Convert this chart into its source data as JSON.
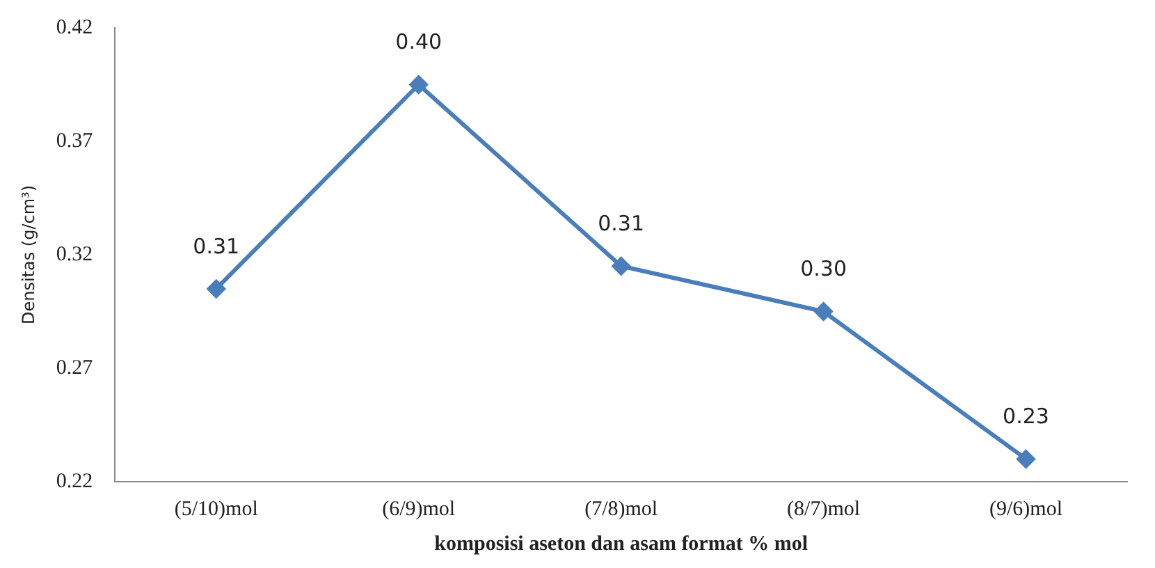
{
  "chart_data": {
    "type": "line",
    "xlabel": "komposisi aseton dan asam format % mol",
    "ylabel": "Densitas (g/cm³)",
    "categories": [
      "(5/10)mol",
      "(6/9)mol",
      "(7/8)mol",
      "(8/7)mol",
      "(9/6)mol"
    ],
    "series": [
      {
        "color": "#4a7ebb",
        "values": [
          0.305,
          0.395,
          0.315,
          0.295,
          0.23
        ],
        "value_labels": [
          "0.31",
          "0.40",
          "0.31",
          "0.30",
          "0.23"
        ]
      }
    ],
    "ylim": [
      0.22,
      0.42
    ],
    "yticks": [
      0.22,
      0.27,
      0.32,
      0.37,
      0.42
    ],
    "grid": false,
    "legend": false,
    "marker": "diamond",
    "line_style": "solid"
  }
}
